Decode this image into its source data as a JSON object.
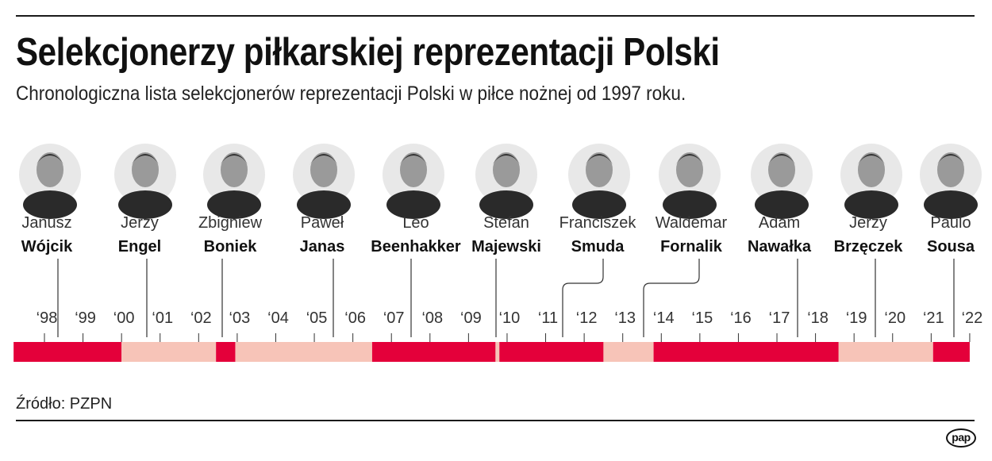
{
  "title": "Selekcjonerzy piłkarskiej reprezentacji Polski",
  "subtitle": "Chronologiczna lista selekcjonerów reprezentacji Polski w piłce nożnej od 1997 roku.",
  "source": "Źródło: PZPN",
  "logo": "pap",
  "colors": {
    "dark": "#e4003a",
    "light": "#f7c4b8",
    "line": "#333333"
  },
  "chart_data": {
    "type": "timeline",
    "xlim": [
      1997.2,
      2022.0
    ],
    "tick_labels": [
      "‘98",
      "‘99",
      "‘00",
      "‘01",
      "‘02",
      "‘03",
      "‘04",
      "‘05",
      "‘06",
      "‘07",
      "‘08",
      "‘09",
      "‘10",
      "‘11",
      "‘12",
      "‘13",
      "‘14",
      "‘15",
      "‘16",
      "‘17",
      "‘18",
      "‘19",
      "‘20",
      "‘21",
      "‘22"
    ],
    "ticks": [
      1998,
      1999,
      2000,
      2001,
      2002,
      2003,
      2004,
      2005,
      2006,
      2007,
      2008,
      2009,
      2010,
      2011,
      2012,
      2013,
      2014,
      2015,
      2016,
      2017,
      2018,
      2019,
      2020,
      2021,
      2022
    ],
    "coaches": [
      {
        "first": "Janusz",
        "last": "Wójcik",
        "start": 1997.2,
        "end": 2000.0,
        "color": "dark",
        "photo_icon": "portrait-icon"
      },
      {
        "first": "Jerzy",
        "last": "Engel",
        "start": 2000.0,
        "end": 2002.45,
        "color": "light",
        "photo_icon": "portrait-icon"
      },
      {
        "first": "Zbigniew",
        "last": "Boniek",
        "start": 2002.45,
        "end": 2002.95,
        "color": "dark",
        "photo_icon": "portrait-icon"
      },
      {
        "first": "Paweł",
        "last": "Janas",
        "start": 2002.95,
        "end": 2006.5,
        "color": "light",
        "photo_icon": "portrait-icon"
      },
      {
        "first": "Leo",
        "last": "Beenhakker",
        "start": 2006.5,
        "end": 2009.7,
        "color": "dark",
        "photo_icon": "portrait-icon"
      },
      {
        "first": "Stefan",
        "last": "Majewski",
        "start": 2009.7,
        "end": 2009.8,
        "color": "light",
        "photo_icon": "portrait-icon"
      },
      {
        "first": "Franciszek",
        "last": "Smuda",
        "start": 2009.8,
        "end": 2012.5,
        "color": "dark",
        "photo_icon": "portrait-icon"
      },
      {
        "first": "Waldemar",
        "last": "Fornalik",
        "start": 2012.5,
        "end": 2013.8,
        "color": "light",
        "photo_icon": "portrait-icon"
      },
      {
        "first": "Adam",
        "last": "Nawałka",
        "start": 2013.8,
        "end": 2018.6,
        "color": "dark",
        "photo_icon": "portrait-icon"
      },
      {
        "first": "Jerzy",
        "last": "Brzęczek",
        "start": 2018.6,
        "end": 2021.05,
        "color": "light",
        "photo_icon": "portrait-icon"
      },
      {
        "first": "Paulo",
        "last": "Sousa",
        "start": 2021.05,
        "end": 2022.0,
        "color": "dark",
        "photo_icon": "portrait-icon"
      }
    ]
  }
}
